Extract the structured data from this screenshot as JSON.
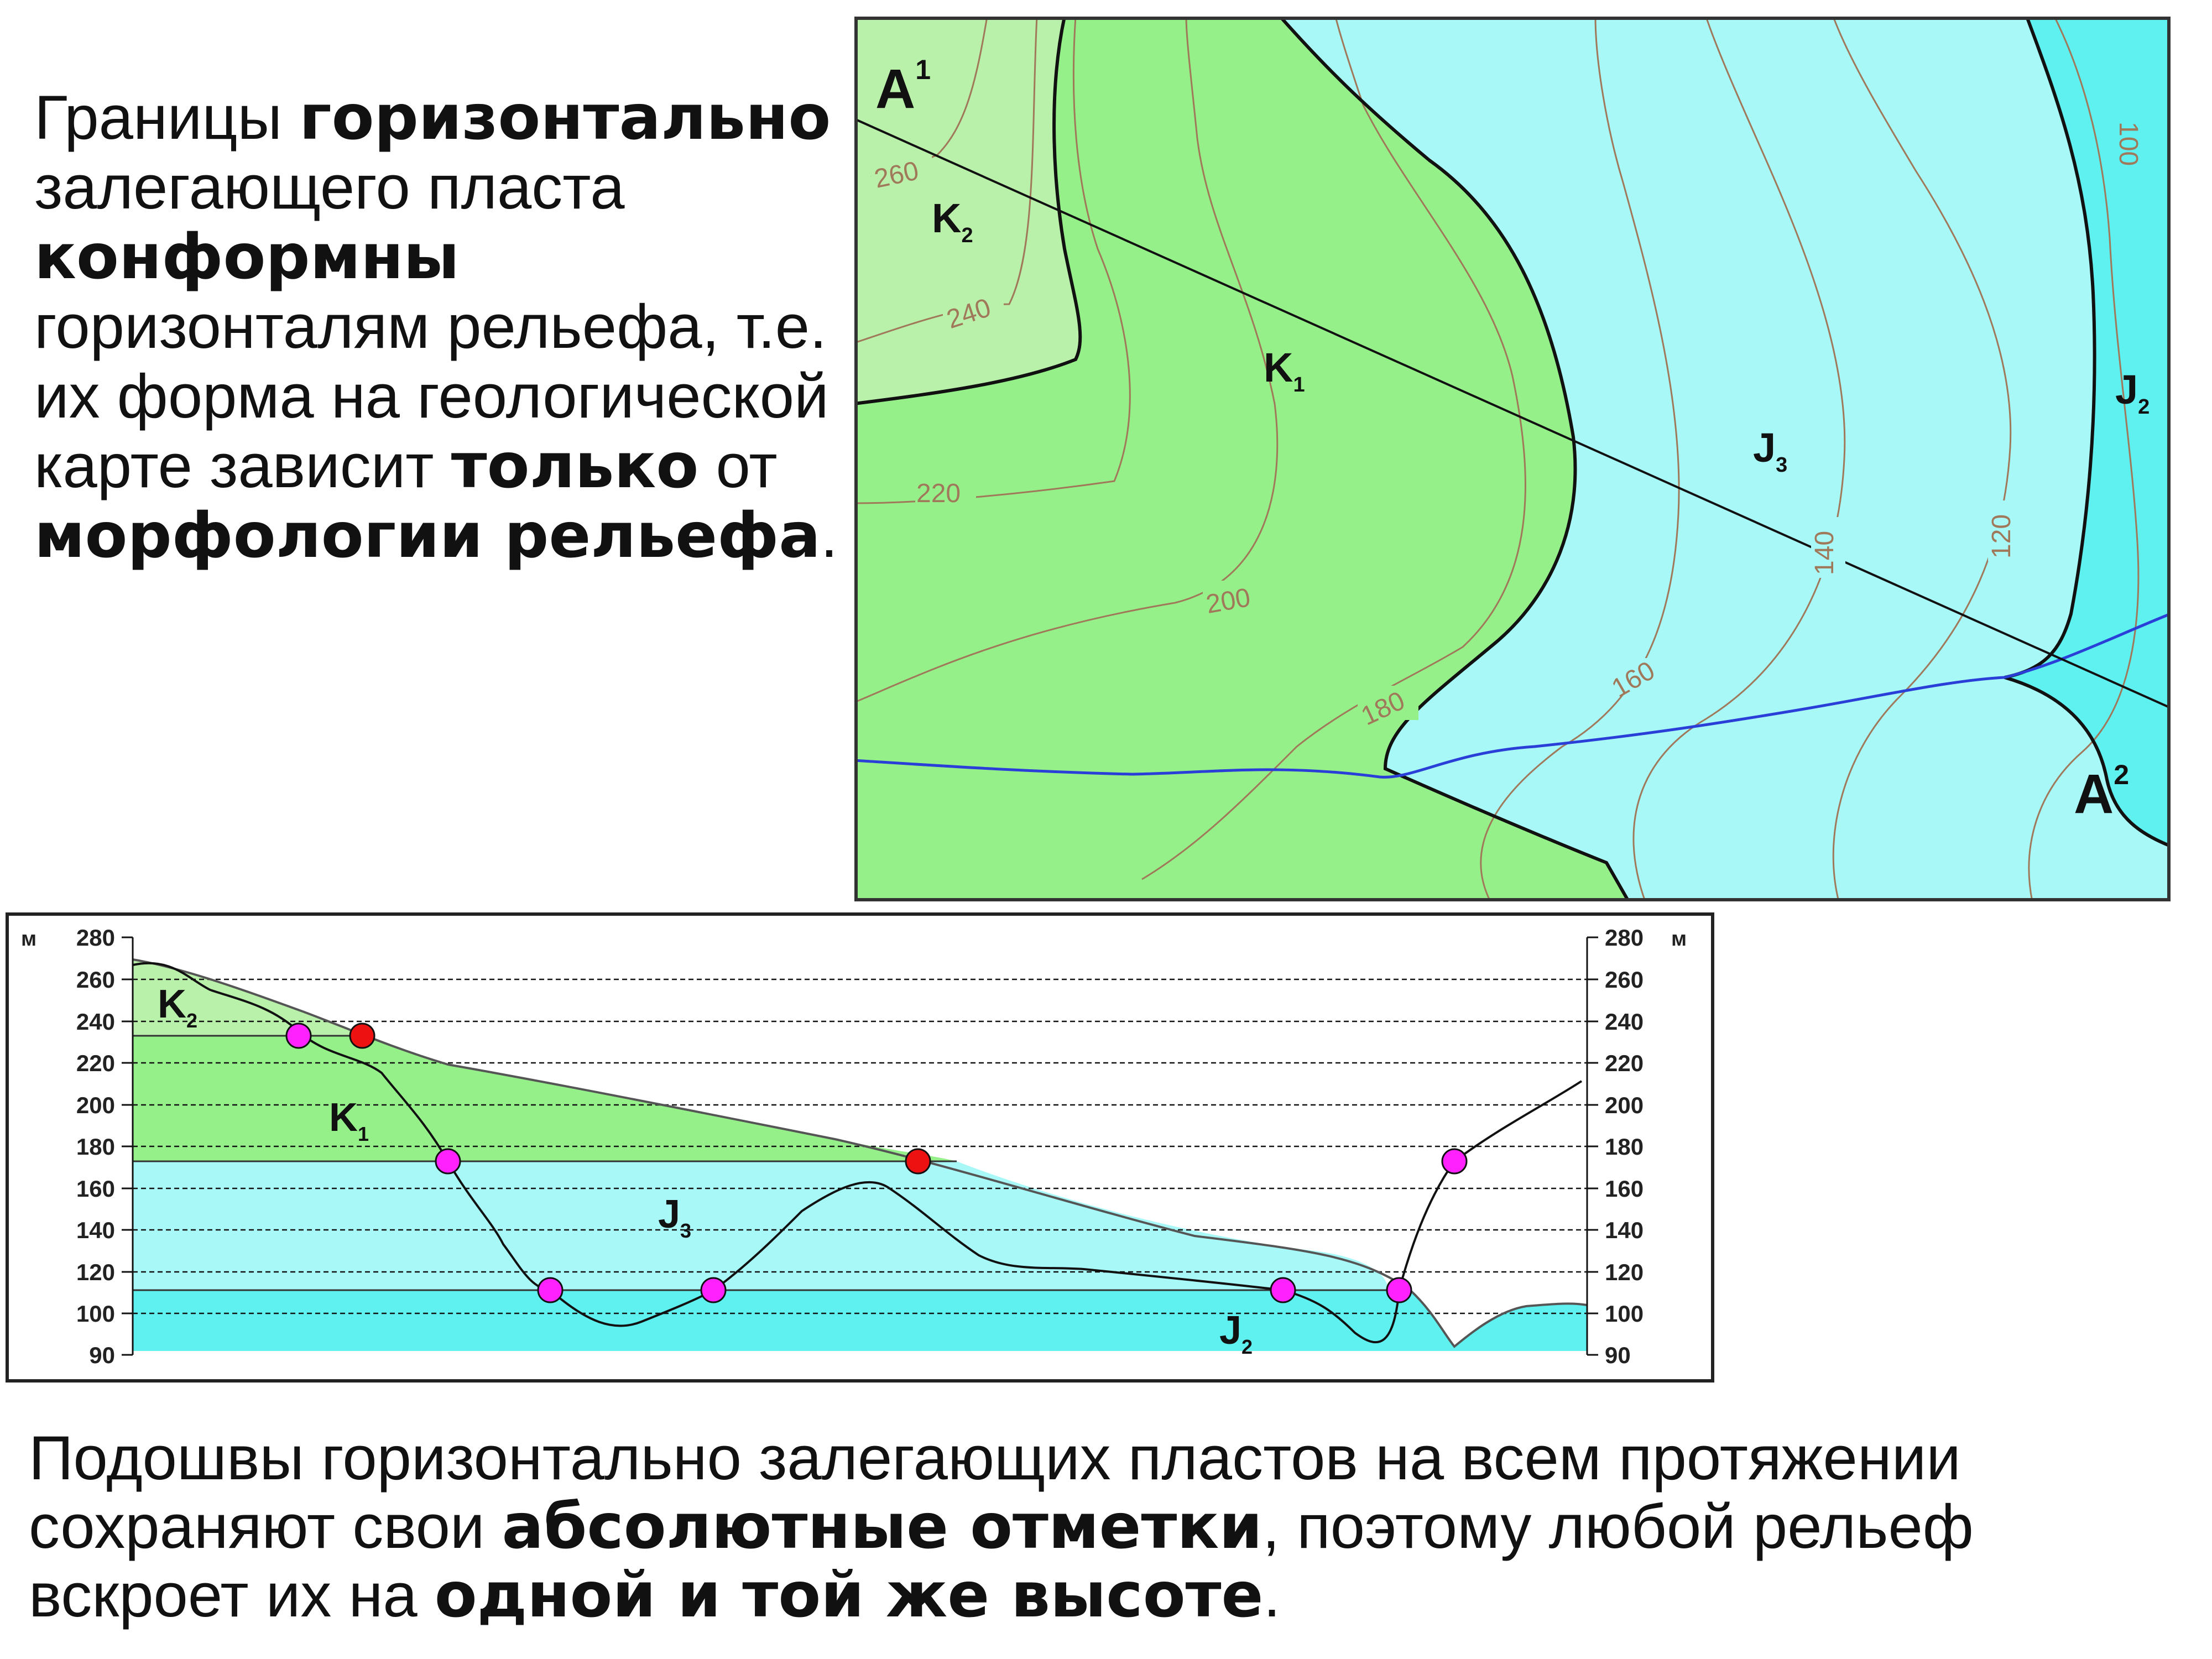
{
  "text_top": {
    "p1": "Границы ",
    "b1": "горизонтально",
    "p2": " залегающего пласта ",
    "b2": "конформны",
    "p3": " горизонталям рельефа, т.е. их форма на геологической карте зависит ",
    "b3": "только",
    "p4": " от ",
    "b4": "морфологии рельефа",
    "p5": "."
  },
  "text_bottom": {
    "p1": "Подошвы горизонтально залегающих пластов на всем протяжении сохраняют свои ",
    "b1": "абсолютные отметки",
    "p2": ", поэтому любой рельеф вскроет их на ",
    "b2": "одной и той же высоте",
    "p3": "."
  },
  "map": {
    "section_start": {
      "letter": "A",
      "index": "1"
    },
    "section_end": {
      "letter": "A",
      "index": "2"
    },
    "units": [
      {
        "letter": "K",
        "index": "2"
      },
      {
        "letter": "K",
        "index": "1"
      },
      {
        "letter": "J",
        "index": "3"
      },
      {
        "letter": "J",
        "index": "2"
      }
    ],
    "contour_labels": [
      "260",
      "240",
      "220",
      "200",
      "180",
      "160",
      "140",
      "120",
      "100"
    ]
  },
  "profile": {
    "left_unit": "м",
    "right_unit": "м",
    "ticks": [
      "280",
      "260",
      "240",
      "220",
      "200",
      "180",
      "160",
      "140",
      "120",
      "100",
      "90"
    ],
    "units": [
      {
        "letter": "K",
        "index": "2"
      },
      {
        "letter": "K",
        "index": "1"
      },
      {
        "letter": "J",
        "index": "3"
      },
      {
        "letter": "J",
        "index": "2"
      }
    ]
  },
  "colors": {
    "k2": "#b9f0aa",
    "k1": "#96f08a",
    "j3": "#a8f8f8",
    "j2": "#5ff0f0",
    "contour": "#a0785a",
    "river": "#2a3ed8",
    "point_magenta": "#ff22ff",
    "point_red": "#ee1111"
  }
}
